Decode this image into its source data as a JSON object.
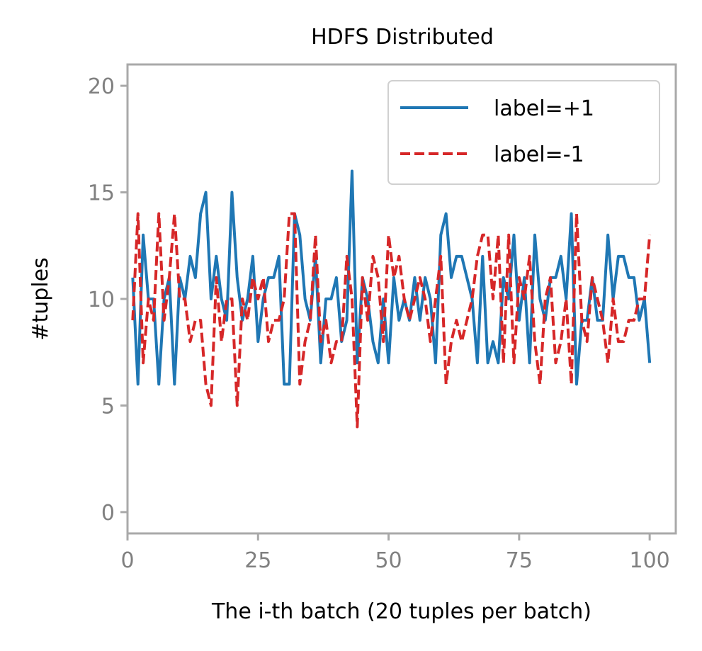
{
  "chart_data": {
    "type": "line",
    "title": "HDFS Distributed",
    "xlabel": "The i-th batch (20 tuples per batch)",
    "ylabel": "#tuples",
    "xlim": [
      0,
      105
    ],
    "ylim": [
      -1,
      21
    ],
    "xticks": [
      0,
      25,
      50,
      75,
      100
    ],
    "yticks": [
      0,
      5,
      10,
      15,
      20
    ],
    "xtick_labels": [
      "0",
      "25",
      "50",
      "75",
      "100"
    ],
    "ytick_labels": [
      "0",
      "5",
      "10",
      "15",
      "20"
    ],
    "legend_position": "upper-right",
    "grid": false,
    "x": [
      1,
      2,
      3,
      4,
      5,
      6,
      7,
      8,
      9,
      10,
      11,
      12,
      13,
      14,
      15,
      16,
      17,
      18,
      19,
      20,
      21,
      22,
      23,
      24,
      25,
      26,
      27,
      28,
      29,
      30,
      31,
      32,
      33,
      34,
      35,
      36,
      37,
      38,
      39,
      40,
      41,
      42,
      43,
      44,
      45,
      46,
      47,
      48,
      49,
      50,
      51,
      52,
      53,
      54,
      55,
      56,
      57,
      58,
      59,
      60,
      61,
      62,
      63,
      64,
      65,
      66,
      67,
      68,
      69,
      70,
      71,
      72,
      73,
      74,
      75,
      76,
      77,
      78,
      79,
      80,
      81,
      82,
      83,
      84,
      85,
      86,
      87,
      88,
      89,
      90,
      91,
      92,
      93,
      94,
      95,
      96,
      97,
      98,
      99,
      100
    ],
    "series": [
      {
        "name": "label=+1",
        "color": "#1f77b4",
        "style": "solid",
        "values": [
          11,
          6,
          13,
          10,
          10,
          6,
          10,
          11,
          6,
          11,
          10,
          12,
          11,
          14,
          15,
          10,
          12,
          10,
          9,
          15,
          11,
          9,
          10,
          12,
          8,
          10,
          11,
          11,
          12,
          6,
          6,
          14,
          13,
          10,
          9,
          12,
          7,
          10,
          10,
          11,
          8,
          9,
          16,
          7,
          11,
          10,
          8,
          7,
          10,
          7,
          11,
          9,
          10,
          9,
          11,
          9,
          11,
          10,
          7,
          13,
          14,
          11,
          12,
          12,
          11,
          10,
          7,
          12,
          7,
          8,
          7,
          11,
          10,
          13,
          9,
          11,
          7,
          13,
          10,
          9,
          11,
          11,
          12,
          10,
          14,
          6,
          9,
          9,
          11,
          9,
          9,
          13,
          10,
          12,
          12,
          11,
          11,
          9,
          10,
          7
        ]
      },
      {
        "name": "label=-1",
        "color": "#d62728",
        "style": "dashed",
        "values": [
          9,
          14,
          7,
          10,
          9,
          14,
          9,
          11,
          14,
          10,
          10,
          8,
          9,
          9,
          6,
          5,
          11,
          8,
          10,
          10,
          5,
          10,
          9,
          11,
          10,
          11,
          8,
          9,
          9,
          10,
          14,
          14,
          6,
          8,
          9,
          13,
          8,
          9,
          7,
          8,
          8,
          12,
          10,
          4,
          11,
          9,
          12,
          11,
          8,
          13,
          11,
          12,
          10,
          9,
          10,
          11,
          10,
          8,
          10,
          12,
          6,
          8,
          9,
          8,
          9,
          10,
          12,
          13,
          13,
          10,
          13,
          7,
          13,
          7,
          11,
          10,
          12,
          8,
          6,
          10,
          11,
          7,
          8,
          10,
          6,
          14,
          9,
          8,
          11,
          10,
          9,
          7,
          10,
          8,
          8,
          9,
          9,
          10,
          10,
          13
        ]
      }
    ]
  }
}
